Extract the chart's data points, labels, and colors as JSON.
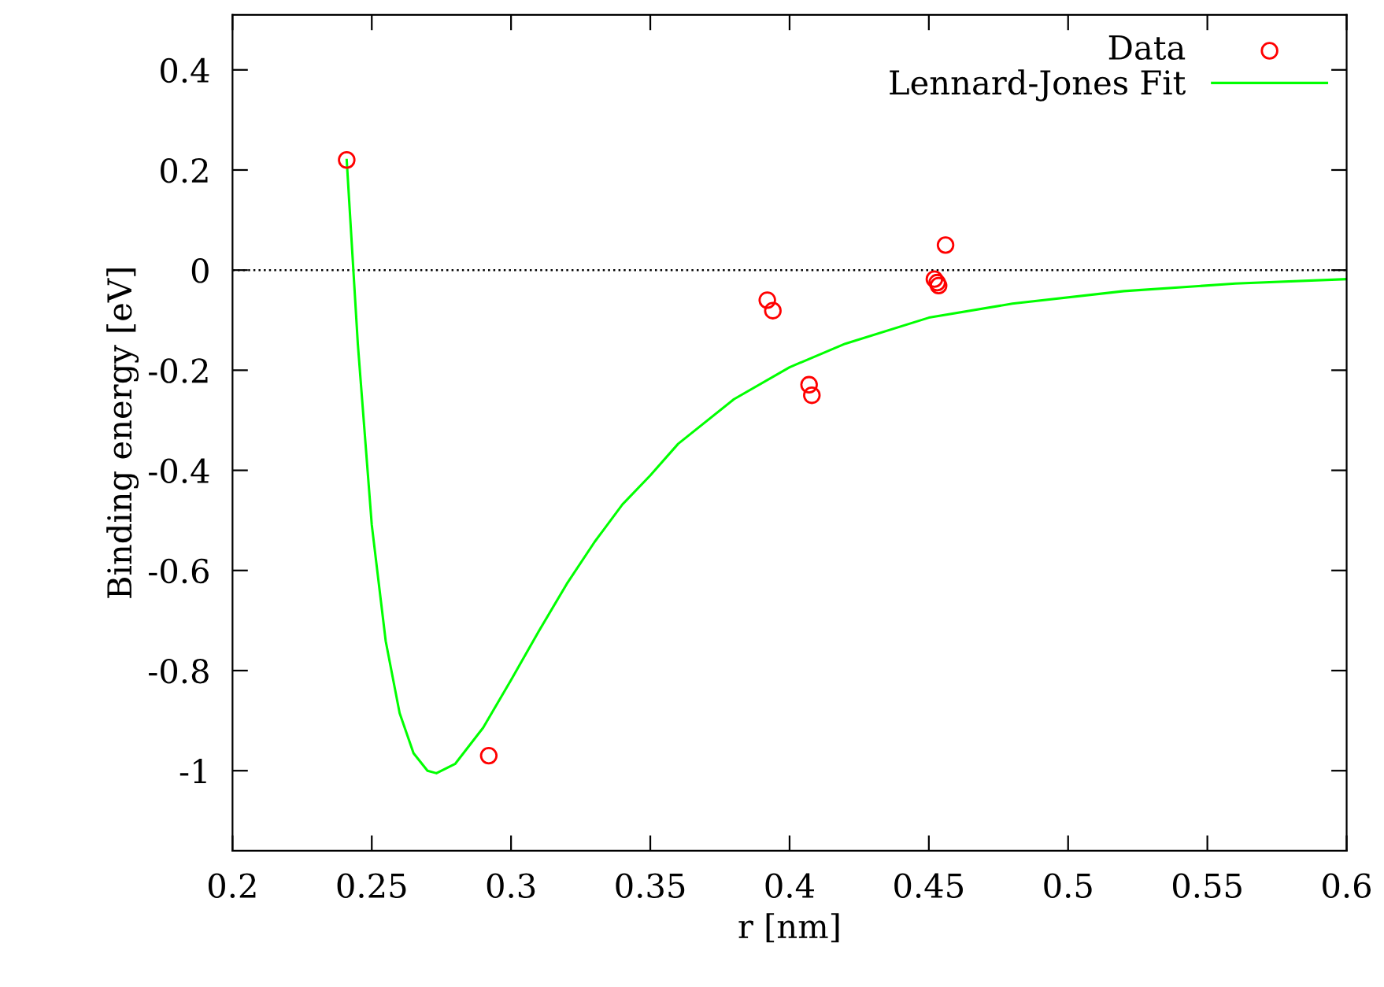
{
  "chart_data": {
    "type": "scatter",
    "xlabel": "r [nm]",
    "ylabel": "Binding energy [eV]",
    "xlim": [
      0.2,
      0.6
    ],
    "xticks": [
      0.2,
      0.25,
      0.3,
      0.35,
      0.4,
      0.45,
      0.5,
      0.55,
      0.6
    ],
    "ylim": [
      -1.16,
      0.51
    ],
    "yticks": [
      -1,
      -0.8,
      -0.6,
      -0.4,
      -0.2,
      0,
      0.2,
      0.4
    ],
    "grid": false,
    "legend": "top right",
    "ref_lines": [
      {
        "axis": "y",
        "value": 0,
        "color": "#000000",
        "line_style": "dotted"
      }
    ],
    "series": [
      {
        "name": "Data",
        "marker": "circle",
        "color": "#ff0000",
        "x": [
          0.241,
          0.292,
          0.392,
          0.394,
          0.407,
          0.408,
          0.452,
          0.453,
          0.4535,
          0.456
        ],
        "values": [
          0.22,
          -0.97,
          -0.06,
          -0.081,
          -0.229,
          -0.25,
          -0.018,
          -0.025,
          -0.031,
          0.05
        ]
      },
      {
        "name": "Lennard-Jones Fit",
        "type": "line",
        "marker": "none",
        "line_style": "solid",
        "color": "#00ff00",
        "x": [
          0.241,
          0.245,
          0.25,
          0.255,
          0.26,
          0.265,
          0.27,
          0.2732,
          0.28,
          0.29,
          0.3,
          0.31,
          0.32,
          0.33,
          0.34,
          0.35,
          0.36,
          0.38,
          0.4,
          0.42,
          0.45,
          0.48,
          0.52,
          0.56,
          0.6
        ],
        "values": [
          0.22,
          -0.148,
          -0.509,
          -0.741,
          -0.885,
          -0.965,
          -1.0,
          -1.005,
          -0.986,
          -0.914,
          -0.819,
          -0.721,
          -0.627,
          -0.543,
          -0.468,
          -0.41,
          -0.347,
          -0.258,
          -0.194,
          -0.147,
          -0.095,
          -0.067,
          -0.042,
          -0.027,
          -0.018
        ]
      }
    ]
  }
}
